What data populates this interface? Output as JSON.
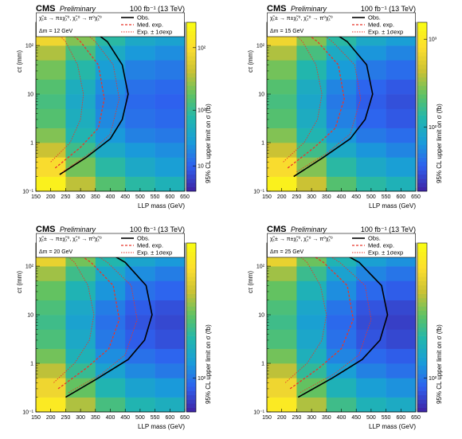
{
  "panels": [
    {
      "cms": "CMS",
      "preliminary": "Preliminary",
      "lumi": "100 fb⁻¹ (13 TeV)",
      "process": "χ̃₁± → π±χ̃₁⁰, χ̃₂⁰ → π⁰χ̃₁⁰",
      "delta_m": "Δm = 12 GeV",
      "legend": [
        "Obs.",
        "Med. exp.",
        "Exp. ± 1σexp"
      ],
      "zlabel": "95% CL upper limit on σ (fb)",
      "ztick_labels": [
        "10²",
        "10²",
        "10"
      ]
    },
    {
      "cms": "CMS",
      "preliminary": "Preliminary",
      "lumi": "100 fb⁻¹ (13 TeV)",
      "process": "χ̃₁± → π±χ̃₁⁰, χ̃₂⁰ → π⁰χ̃₁⁰",
      "delta_m": "Δm = 15 GeV",
      "legend": [
        "Obs.",
        "Med. exp.",
        "Exp. ± 1σexp"
      ],
      "zlabel": "95% CL upper limit on σ (fb)",
      "ztick_labels": [
        "10³",
        "10²"
      ]
    },
    {
      "cms": "CMS",
      "preliminary": "Preliminary",
      "lumi": "100 fb⁻¹ (13 TeV)",
      "process": "χ̃₁± → π±χ̃₁⁰, χ̃₂⁰ → π⁰χ̃₁⁰",
      "delta_m": "Δm = 20 GeV",
      "legend": [
        "Obs.",
        "Med. exp.",
        "Exp. ± 1σexp"
      ],
      "zlabel": "95% CL upper limit on σ (fb)",
      "ztick_labels": [
        "10²"
      ]
    },
    {
      "cms": "CMS",
      "preliminary": "Preliminary",
      "lumi": "100 fb⁻¹ (13 TeV)",
      "process": "χ̃₁± → π±χ̃₁⁰, χ̃₂⁰ → π⁰χ̃₁⁰",
      "delta_m": "Δm = 25 GeV",
      "legend": [
        "Obs.",
        "Med. exp.",
        "Exp. ± 1σexp"
      ],
      "zlabel": "95% CL upper limit on σ (fb)",
      "ztick_labels": [
        "10²"
      ]
    }
  ],
  "axes": {
    "xlabel": "LLP mass (GeV)",
    "ylabel": "cτ (mm)",
    "xticks": [
      150,
      200,
      250,
      300,
      350,
      400,
      450,
      500,
      550,
      600,
      650
    ],
    "yticks": [
      0.1,
      1,
      10,
      100
    ],
    "ytick_labels": [
      "10⁻¹",
      "1",
      "10",
      "10²"
    ]
  },
  "colors": {
    "observed": "#000000",
    "expected": "#e8362a",
    "colormap": [
      "#3e26a8",
      "#2e62ef",
      "#199cd9",
      "#21b6ae",
      "#5dc264",
      "#c9c134",
      "#fcdd2e",
      "#f9fb14"
    ]
  },
  "chart_data": [
    {
      "type": "heatmap",
      "title": "",
      "xlabel": "LLP mass (GeV)",
      "ylabel": "cτ (mm)",
      "xlim": [
        150,
        650
      ],
      "ylim": [
        0.1,
        300
      ],
      "ylog": true,
      "x_bins": [
        150,
        250,
        350,
        450,
        550,
        650
      ],
      "y_bins": [
        0.1,
        0.2,
        0.5,
        1,
        2,
        5,
        10,
        20,
        50,
        100,
        300
      ],
      "z_level": [
        [
          0.95,
          0.7,
          0.55,
          0.45,
          0.4
        ],
        [
          0.85,
          0.6,
          0.45,
          0.35,
          0.3
        ],
        [
          0.72,
          0.5,
          0.35,
          0.28,
          0.25
        ],
        [
          0.62,
          0.42,
          0.28,
          0.22,
          0.2
        ],
        [
          0.55,
          0.38,
          0.24,
          0.18,
          0.16
        ],
        [
          0.52,
          0.35,
          0.22,
          0.16,
          0.14
        ],
        [
          0.55,
          0.38,
          0.25,
          0.18,
          0.16
        ],
        [
          0.6,
          0.44,
          0.3,
          0.22,
          0.2
        ],
        [
          0.68,
          0.52,
          0.36,
          0.28,
          0.25
        ],
        [
          0.82,
          0.62,
          0.45,
          0.35,
          0.32
        ]
      ],
      "series": [
        {
          "name": "Obs.",
          "style": "solid",
          "points": [
            [
              230,
              0.22
            ],
            [
              320,
              0.5
            ],
            [
              400,
              1.2
            ],
            [
              440,
              3
            ],
            [
              460,
              10
            ],
            [
              440,
              40
            ],
            [
              390,
              120
            ],
            [
              320,
              250
            ]
          ]
        },
        {
          "name": "Med. exp.",
          "style": "dashed",
          "points": [
            [
              215,
              0.3
            ],
            [
              300,
              0.8
            ],
            [
              360,
              2
            ],
            [
              380,
              8
            ],
            [
              360,
              40
            ],
            [
              300,
              120
            ],
            [
              240,
              250
            ]
          ]
        },
        {
          "name": "Exp. ± 1σexp",
          "style": "dotted",
          "points": [
            [
              240,
              0.25
            ],
            [
              330,
              0.6
            ],
            [
              400,
              1.5
            ],
            [
              430,
              8
            ],
            [
              410,
              40
            ],
            [
              350,
              120
            ],
            [
              290,
              250
            ]
          ]
        },
        {
          "name": "Exp. ± 1σexp",
          "style": "dotted",
          "points": [
            [
              200,
              0.4
            ],
            [
              265,
              1
            ],
            [
              300,
              3
            ],
            [
              310,
              10
            ],
            [
              290,
              40
            ],
            [
              250,
              120
            ],
            [
              200,
              250
            ]
          ]
        }
      ]
    },
    {
      "type": "heatmap",
      "title": "",
      "xlabel": "LLP mass (GeV)",
      "ylabel": "cτ (mm)",
      "xlim": [
        150,
        650
      ],
      "ylim": [
        0.1,
        300
      ],
      "ylog": true,
      "x_bins": [
        150,
        250,
        350,
        450,
        550,
        650
      ],
      "y_bins": [
        0.1,
        0.2,
        0.5,
        1,
        2,
        5,
        10,
        20,
        50,
        100,
        300
      ],
      "z_level": [
        [
          0.95,
          0.72,
          0.55,
          0.45,
          0.4
        ],
        [
          0.85,
          0.62,
          0.45,
          0.35,
          0.3
        ],
        [
          0.72,
          0.5,
          0.35,
          0.27,
          0.23
        ],
        [
          0.62,
          0.42,
          0.27,
          0.2,
          0.17
        ],
        [
          0.55,
          0.37,
          0.22,
          0.15,
          0.12
        ],
        [
          0.52,
          0.34,
          0.2,
          0.13,
          0.1
        ],
        [
          0.55,
          0.37,
          0.23,
          0.15,
          0.12
        ],
        [
          0.6,
          0.43,
          0.29,
          0.2,
          0.17
        ],
        [
          0.68,
          0.52,
          0.36,
          0.27,
          0.23
        ],
        [
          0.82,
          0.62,
          0.45,
          0.35,
          0.3
        ]
      ],
      "series": [
        {
          "name": "Obs.",
          "style": "solid",
          "points": [
            [
              240,
              0.2
            ],
            [
              340,
              0.5
            ],
            [
              430,
              1.2
            ],
            [
              480,
              3
            ],
            [
              505,
              10
            ],
            [
              485,
              40
            ],
            [
              420,
              120
            ],
            [
              340,
              250
            ]
          ]
        },
        {
          "name": "Med. exp.",
          "style": "dashed",
          "points": [
            [
              220,
              0.3
            ],
            [
              310,
              0.8
            ],
            [
              380,
              2
            ],
            [
              410,
              8
            ],
            [
              390,
              40
            ],
            [
              320,
              120
            ],
            [
              250,
              250
            ]
          ]
        },
        {
          "name": "Exp. ± 1σexp",
          "style": "dotted",
          "points": [
            [
              250,
              0.25
            ],
            [
              350,
              0.6
            ],
            [
              430,
              1.5
            ],
            [
              465,
              8
            ],
            [
              445,
              40
            ],
            [
              370,
              120
            ],
            [
              300,
              250
            ]
          ]
        },
        {
          "name": "Exp. ± 1σexp",
          "style": "dotted",
          "points": [
            [
              205,
              0.4
            ],
            [
              275,
              1
            ],
            [
              320,
              3
            ],
            [
              335,
              10
            ],
            [
              315,
              40
            ],
            [
              270,
              120
            ],
            [
              215,
              250
            ]
          ]
        }
      ]
    },
    {
      "type": "heatmap",
      "title": "",
      "xlabel": "LLP mass (GeV)",
      "ylabel": "cτ (mm)",
      "xlim": [
        150,
        650
      ],
      "ylim": [
        0.1,
        300
      ],
      "ylog": true,
      "x_bins": [
        150,
        250,
        350,
        450,
        550,
        650
      ],
      "y_bins": [
        0.1,
        0.2,
        0.5,
        1,
        2,
        5,
        10,
        20,
        50,
        100,
        300
      ],
      "z_level": [
        [
          0.92,
          0.68,
          0.52,
          0.42,
          0.38
        ],
        [
          0.82,
          0.58,
          0.42,
          0.32,
          0.28
        ],
        [
          0.7,
          0.48,
          0.32,
          0.24,
          0.2
        ],
        [
          0.6,
          0.4,
          0.25,
          0.18,
          0.15
        ],
        [
          0.53,
          0.35,
          0.2,
          0.13,
          0.1
        ],
        [
          0.5,
          0.32,
          0.18,
          0.11,
          0.08
        ],
        [
          0.53,
          0.35,
          0.21,
          0.13,
          0.1
        ],
        [
          0.58,
          0.41,
          0.27,
          0.18,
          0.15
        ],
        [
          0.66,
          0.5,
          0.34,
          0.25,
          0.21
        ],
        [
          0.8,
          0.6,
          0.43,
          0.33,
          0.28
        ]
      ],
      "series": [
        {
          "name": "Obs.",
          "style": "solid",
          "points": [
            [
              250,
              0.2
            ],
            [
              360,
              0.5
            ],
            [
              460,
              1.2
            ],
            [
              515,
              3
            ],
            [
              540,
              10
            ],
            [
              520,
              40
            ],
            [
              450,
              120
            ],
            [
              360,
              250
            ]
          ]
        },
        {
          "name": "Med. exp.",
          "style": "dashed",
          "points": [
            [
              225,
              0.3
            ],
            [
              320,
              0.8
            ],
            [
              395,
              2
            ],
            [
              430,
              8
            ],
            [
              410,
              40
            ],
            [
              335,
              120
            ],
            [
              255,
              250
            ]
          ]
        },
        {
          "name": "Exp. ± 1σexp",
          "style": "dotted",
          "points": [
            [
              260,
              0.25
            ],
            [
              370,
              0.6
            ],
            [
              450,
              1.5
            ],
            [
              490,
              8
            ],
            [
              470,
              40
            ],
            [
              390,
              120
            ],
            [
              310,
              250
            ]
          ]
        },
        {
          "name": "Exp. ± 1σexp",
          "style": "dotted",
          "points": [
            [
              210,
              0.4
            ],
            [
              280,
              1
            ],
            [
              330,
              3
            ],
            [
              345,
              10
            ],
            [
              325,
              40
            ],
            [
              280,
              120
            ],
            [
              220,
              250
            ]
          ]
        }
      ]
    },
    {
      "type": "heatmap",
      "title": "",
      "xlabel": "LLP mass (GeV)",
      "ylabel": "cτ (mm)",
      "xlim": [
        150,
        650
      ],
      "ylim": [
        0.1,
        300
      ],
      "ylog": true,
      "x_bins": [
        150,
        250,
        350,
        450,
        550,
        650
      ],
      "y_bins": [
        0.1,
        0.2,
        0.5,
        1,
        2,
        5,
        10,
        20,
        50,
        100,
        300
      ],
      "z_level": [
        [
          0.92,
          0.68,
          0.5,
          0.4,
          0.36
        ],
        [
          0.82,
          0.58,
          0.4,
          0.3,
          0.26
        ],
        [
          0.7,
          0.47,
          0.3,
          0.22,
          0.18
        ],
        [
          0.6,
          0.39,
          0.23,
          0.16,
          0.13
        ],
        [
          0.53,
          0.34,
          0.18,
          0.11,
          0.08
        ],
        [
          0.5,
          0.31,
          0.16,
          0.09,
          0.06
        ],
        [
          0.53,
          0.34,
          0.19,
          0.11,
          0.08
        ],
        [
          0.58,
          0.4,
          0.25,
          0.16,
          0.13
        ],
        [
          0.66,
          0.49,
          0.32,
          0.23,
          0.19
        ],
        [
          0.8,
          0.59,
          0.41,
          0.31,
          0.26
        ]
      ],
      "series": [
        {
          "name": "Obs.",
          "style": "solid",
          "points": [
            [
              255,
              0.2
            ],
            [
              370,
              0.5
            ],
            [
              470,
              1.2
            ],
            [
              530,
              3
            ],
            [
              555,
              10
            ],
            [
              535,
              40
            ],
            [
              460,
              120
            ],
            [
              365,
              250
            ]
          ]
        },
        {
          "name": "Med. exp.",
          "style": "dashed",
          "points": [
            [
              228,
              0.3
            ],
            [
              325,
              0.8
            ],
            [
              400,
              2
            ],
            [
              440,
              8
            ],
            [
              420,
              40
            ],
            [
              340,
              120
            ],
            [
              258,
              250
            ]
          ]
        },
        {
          "name": "Exp. ± 1σexp",
          "style": "dotted",
          "points": [
            [
              262,
              0.25
            ],
            [
              375,
              0.6
            ],
            [
              460,
              1.5
            ],
            [
              500,
              8
            ],
            [
              480,
              40
            ],
            [
              395,
              120
            ],
            [
              312,
              250
            ]
          ]
        },
        {
          "name": "Exp. ± 1σexp",
          "style": "dotted",
          "points": [
            [
              212,
              0.4
            ],
            [
              285,
              1
            ],
            [
              335,
              3
            ],
            [
              350,
              10
            ],
            [
              330,
              40
            ],
            [
              285,
              120
            ],
            [
              222,
              250
            ]
          ]
        }
      ]
    }
  ]
}
